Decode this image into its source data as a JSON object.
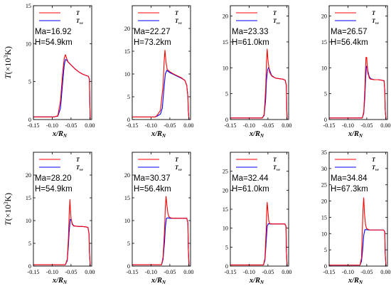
{
  "figure": {
    "ylabel_main": "T",
    "ylabel_open": "(×10",
    "ylabel_sup": "3",
    "ylabel_close": "K)",
    "xlabel_main": "x/R",
    "xlabel_sub": "N",
    "legend": {
      "T_label": "T",
      "Tve_label": "T",
      "Tve_sub": "ve"
    },
    "colors": {
      "T": "#ff0000",
      "Tve": "#0000ff"
    }
  },
  "chart_data": [
    {
      "type": "line",
      "ma": "Ma=16.92",
      "h": "H=54.9km",
      "xlim": [
        -0.15,
        0.005
      ],
      "ylim": [
        0,
        15
      ],
      "yticks": [
        0,
        5,
        10,
        15
      ],
      "series": [
        {
          "name": "T",
          "x": [
            -0.155,
            -0.095,
            -0.085,
            -0.078,
            -0.072,
            -0.068,
            -0.065,
            -0.062,
            -0.058,
            -0.05,
            -0.04,
            -0.03,
            -0.02,
            -0.01,
            -0.004,
            -0.001,
            0.0,
            0.001
          ],
          "y": [
            0.35,
            0.35,
            0.5,
            2.5,
            6.3,
            8.1,
            8.55,
            8.1,
            7.6,
            7.2,
            6.7,
            6.3,
            6.0,
            5.8,
            5.7,
            5.3,
            2.0,
            0.0
          ]
        },
        {
          "name": "Tve",
          "x": [
            -0.155,
            -0.095,
            -0.085,
            -0.078,
            -0.072,
            -0.068,
            -0.065,
            -0.062,
            -0.058,
            -0.05,
            -0.04,
            -0.03,
            -0.02,
            -0.01,
            -0.004,
            -0.001,
            0.0,
            0.001
          ],
          "y": [
            0.35,
            0.35,
            0.45,
            1.5,
            5.0,
            7.2,
            7.9,
            7.85,
            7.6,
            7.2,
            6.7,
            6.3,
            6.0,
            5.8,
            5.7,
            5.3,
            2.0,
            0.0
          ]
        }
      ]
    },
    {
      "type": "line",
      "ma": "Ma=22.27",
      "h": "H=73.2km",
      "xlim": [
        -0.15,
        0.005
      ],
      "ylim": [
        0,
        25
      ],
      "yticks": [
        0,
        5,
        10,
        15,
        20
      ],
      "series": [
        {
          "name": "T",
          "x": [
            -0.155,
            -0.09,
            -0.085,
            -0.075,
            -0.068,
            -0.065,
            -0.063,
            -0.06,
            -0.057,
            -0.05,
            -0.04,
            -0.03,
            -0.02,
            -0.01,
            -0.005,
            -0.002,
            -0.001,
            0.001
          ],
          "y": [
            0.55,
            0.55,
            0.8,
            2.0,
            7.5,
            13.0,
            15.2,
            12.5,
            11.0,
            10.5,
            10.0,
            9.6,
            9.2,
            8.6,
            7.5,
            5.0,
            2.0,
            0.0
          ]
        },
        {
          "name": "Tve",
          "x": [
            -0.155,
            -0.09,
            -0.085,
            -0.075,
            -0.07,
            -0.066,
            -0.062,
            -0.058,
            -0.055,
            -0.05,
            -0.04,
            -0.03,
            -0.02,
            -0.01,
            -0.005,
            -0.002,
            -0.001,
            0.001
          ],
          "y": [
            0.55,
            0.55,
            0.7,
            1.2,
            2.5,
            6.5,
            10.0,
            10.8,
            10.6,
            10.3,
            9.9,
            9.5,
            9.1,
            8.6,
            7.5,
            5.0,
            2.0,
            0.0
          ]
        }
      ]
    },
    {
      "type": "line",
      "ma": "Ma=23.33",
      "h": "H=61.0km",
      "xlim": [
        -0.15,
        0.005
      ],
      "ylim": [
        0,
        22
      ],
      "yticks": [
        0,
        5,
        10,
        15,
        20
      ],
      "series": [
        {
          "name": "T",
          "x": [
            -0.155,
            -0.065,
            -0.06,
            -0.056,
            -0.054,
            -0.052,
            -0.05,
            -0.046,
            -0.04,
            -0.03,
            -0.02,
            -0.01,
            -0.004,
            -0.001,
            0.0,
            0.001
          ],
          "y": [
            0.3,
            0.3,
            1.0,
            6.0,
            11.0,
            13.6,
            11.5,
            9.2,
            8.4,
            8.0,
            7.9,
            7.8,
            7.6,
            6.5,
            2.0,
            0.0
          ]
        },
        {
          "name": "Tve",
          "x": [
            -0.155,
            -0.065,
            -0.06,
            -0.056,
            -0.054,
            -0.051,
            -0.048,
            -0.044,
            -0.04,
            -0.03,
            -0.02,
            -0.01,
            -0.004,
            -0.001,
            0.0,
            0.001
          ],
          "y": [
            0.3,
            0.3,
            0.8,
            4.0,
            7.5,
            9.6,
            10.1,
            9.2,
            8.5,
            8.0,
            7.9,
            7.8,
            7.6,
            6.5,
            2.0,
            0.0
          ]
        }
      ]
    },
    {
      "type": "line",
      "ma": "Ma=26.57",
      "h": "H=56.4km",
      "xlim": [
        -0.15,
        0.005
      ],
      "ylim": [
        0,
        22
      ],
      "yticks": [
        0,
        5,
        10,
        15,
        20
      ],
      "series": [
        {
          "name": "T",
          "x": [
            -0.155,
            -0.062,
            -0.058,
            -0.055,
            -0.053,
            -0.052,
            -0.05,
            -0.049,
            -0.047,
            -0.043,
            -0.04,
            -0.03,
            -0.02,
            -0.01,
            -0.004,
            -0.002,
            -0.001,
            0.001
          ],
          "y": [
            0.3,
            0.3,
            1.5,
            6.0,
            10.5,
            12.0,
            12.0,
            10.5,
            9.0,
            8.0,
            7.8,
            7.7,
            7.7,
            7.6,
            7.5,
            5.5,
            2.0,
            0.0
          ]
        },
        {
          "name": "Tve",
          "x": [
            -0.155,
            -0.062,
            -0.058,
            -0.055,
            -0.053,
            -0.051,
            -0.049,
            -0.047,
            -0.044,
            -0.04,
            -0.03,
            -0.02,
            -0.01,
            -0.004,
            -0.002,
            -0.001,
            0.001
          ],
          "y": [
            0.3,
            0.3,
            1.2,
            4.5,
            8.0,
            10.2,
            10.4,
            9.4,
            8.4,
            7.9,
            7.7,
            7.7,
            7.6,
            7.5,
            5.5,
            2.0,
            0.0
          ]
        }
      ]
    },
    {
      "type": "line",
      "ma": "Ma=28.20",
      "h": "H=54.9km",
      "xlim": [
        -0.15,
        0.005
      ],
      "ylim": [
        0,
        25
      ],
      "yticks": [
        0,
        5,
        10,
        15,
        20
      ],
      "series": [
        {
          "name": "T",
          "x": [
            -0.155,
            -0.065,
            -0.06,
            -0.057,
            -0.055,
            -0.053,
            -0.052,
            -0.05,
            -0.047,
            -0.043,
            -0.04,
            -0.03,
            -0.02,
            -0.01,
            -0.005,
            -0.002,
            -0.001,
            0.001
          ],
          "y": [
            0.3,
            0.3,
            1.5,
            6.0,
            11.0,
            14.6,
            13.0,
            10.5,
            9.2,
            8.8,
            8.8,
            8.7,
            8.7,
            8.6,
            8.5,
            7.0,
            3.0,
            0.0
          ]
        },
        {
          "name": "Tve",
          "x": [
            -0.155,
            -0.065,
            -0.06,
            -0.057,
            -0.055,
            -0.052,
            -0.049,
            -0.046,
            -0.043,
            -0.04,
            -0.03,
            -0.02,
            -0.01,
            -0.005,
            -0.002,
            -0.001,
            0.001
          ],
          "y": [
            0.3,
            0.3,
            1.2,
            4.5,
            7.5,
            10.3,
            10.0,
            9.2,
            8.9,
            8.8,
            8.7,
            8.7,
            8.6,
            8.5,
            7.0,
            3.0,
            0.0
          ]
        }
      ]
    },
    {
      "type": "line",
      "ma": "Ma=30.37",
      "h": "H=56.4km",
      "xlim": [
        -0.15,
        0.005
      ],
      "ylim": [
        0,
        25
      ],
      "yticks": [
        0,
        5,
        10,
        15,
        20
      ],
      "series": [
        {
          "name": "T",
          "x": [
            -0.155,
            -0.072,
            -0.068,
            -0.064,
            -0.062,
            -0.06,
            -0.058,
            -0.055,
            -0.052,
            -0.048,
            -0.04,
            -0.03,
            -0.02,
            -0.01,
            -0.005,
            -0.002,
            -0.001,
            0.001
          ],
          "y": [
            0.3,
            0.3,
            2.0,
            8.0,
            13.0,
            15.3,
            13.5,
            11.5,
            10.8,
            10.6,
            10.5,
            10.5,
            10.5,
            10.5,
            10.5,
            9.5,
            4.0,
            0.0
          ]
        },
        {
          "name": "Tve",
          "x": [
            -0.155,
            -0.072,
            -0.068,
            -0.064,
            -0.062,
            -0.059,
            -0.055,
            -0.05,
            -0.04,
            -0.03,
            -0.02,
            -0.01,
            -0.005,
            -0.002,
            -0.001,
            0.001
          ],
          "y": [
            0.3,
            0.3,
            1.5,
            5.5,
            8.5,
            10.5,
            10.6,
            10.5,
            10.5,
            10.5,
            10.5,
            10.5,
            10.5,
            9.5,
            4.0,
            0.0
          ]
        }
      ]
    },
    {
      "type": "line",
      "ma": "Ma=32.44",
      "h": "H=61.0km",
      "xlim": [
        -0.15,
        0.005
      ],
      "ylim": [
        0,
        30
      ],
      "yticks": [
        0,
        5,
        10,
        15,
        20,
        25
      ],
      "series": [
        {
          "name": "T",
          "x": [
            -0.155,
            -0.062,
            -0.058,
            -0.055,
            -0.053,
            -0.052,
            -0.05,
            -0.048,
            -0.045,
            -0.04,
            -0.03,
            -0.02,
            -0.01,
            -0.005,
            -0.002,
            -0.001,
            0.001
          ],
          "y": [
            0.3,
            0.3,
            2.0,
            9.0,
            15.0,
            16.8,
            14.5,
            12.0,
            11.2,
            11.1,
            11.1,
            11.1,
            11.1,
            11.1,
            10.5,
            4.0,
            0.0
          ]
        },
        {
          "name": "Tve",
          "x": [
            -0.155,
            -0.062,
            -0.058,
            -0.055,
            -0.052,
            -0.049,
            -0.045,
            -0.04,
            -0.03,
            -0.02,
            -0.01,
            -0.005,
            -0.002,
            -0.001,
            0.001
          ],
          "y": [
            0.3,
            0.3,
            1.5,
            6.0,
            10.5,
            11.2,
            11.1,
            11.1,
            11.1,
            11.1,
            11.1,
            11.1,
            10.5,
            4.0,
            0.0
          ]
        }
      ]
    },
    {
      "type": "line",
      "ma": "Ma=34.84",
      "h": "H=67.3km",
      "xlim": [
        -0.15,
        0.005
      ],
      "ylim": [
        0,
        35
      ],
      "yticks": [
        0,
        5,
        10,
        15,
        20,
        25,
        30,
        35
      ],
      "series": [
        {
          "name": "T",
          "x": [
            -0.155,
            -0.068,
            -0.064,
            -0.062,
            -0.06,
            -0.058,
            -0.056,
            -0.053,
            -0.05,
            -0.045,
            -0.04,
            -0.03,
            -0.02,
            -0.01,
            -0.005,
            -0.002,
            -0.001,
            0.001
          ],
          "y": [
            0.3,
            0.3,
            2.5,
            10.0,
            17.5,
            21.0,
            16.0,
            12.5,
            11.5,
            11.2,
            11.1,
            11.1,
            11.1,
            11.1,
            11.1,
            10.5,
            4.0,
            0.0
          ]
        },
        {
          "name": "Tve",
          "x": [
            -0.155,
            -0.068,
            -0.064,
            -0.061,
            -0.058,
            -0.055,
            -0.05,
            -0.045,
            -0.04,
            -0.03,
            -0.02,
            -0.01,
            -0.005,
            -0.002,
            -0.001,
            0.001
          ],
          "y": [
            0.3,
            0.3,
            1.5,
            5.0,
            9.5,
            11.2,
            11.2,
            11.1,
            11.1,
            11.1,
            11.1,
            11.1,
            11.1,
            10.5,
            4.0,
            0.0
          ]
        }
      ]
    }
  ]
}
